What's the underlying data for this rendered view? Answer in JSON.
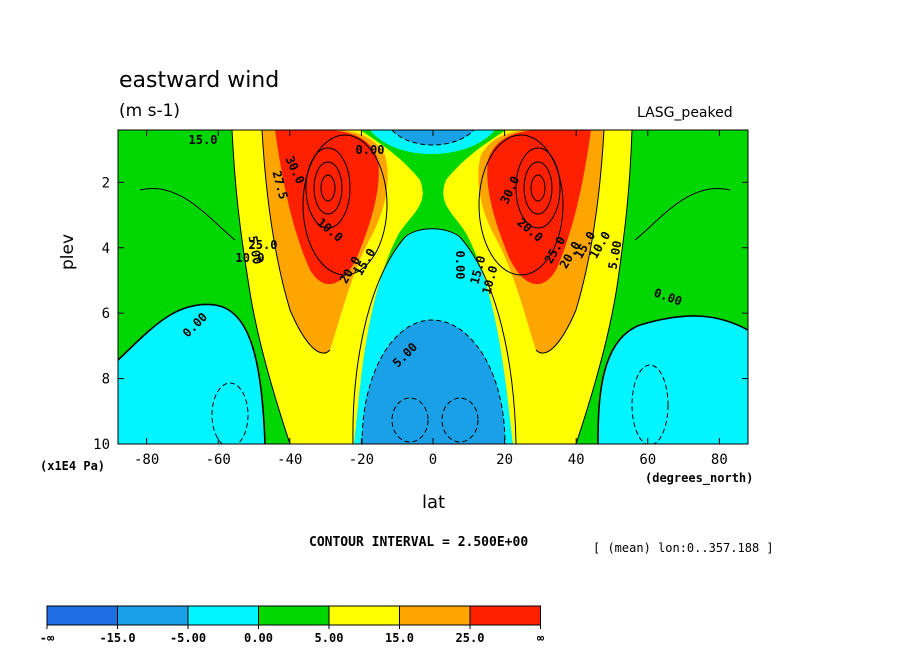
{
  "header": {
    "title": "eastward wind",
    "units": "(m s-1)",
    "model": "LASG_peaked"
  },
  "footer": {
    "contour_interval": "CONTOUR INTERVAL = 2.500E+00",
    "mean_note": "[ (mean) lon:0..357.188 ]"
  },
  "chart_data": {
    "type": "heatmap",
    "title": "eastward wind",
    "units": "(m s-1)",
    "xlabel": "lat",
    "xunit": "(degrees_north)",
    "ylabel": "plev",
    "yunit": "(x1E4 Pa)",
    "xlim": [
      -88,
      88
    ],
    "ylim": [
      10,
      0.4
    ],
    "x_ticks": [
      -80,
      -60,
      -40,
      -20,
      0,
      20,
      40,
      60,
      80
    ],
    "x_tick_labels": [
      "-80",
      "-60",
      "-40",
      "-20",
      "0",
      "20",
      "40",
      "60",
      "80"
    ],
    "y_ticks": [
      2,
      4,
      6,
      8,
      10
    ],
    "y_tick_labels": [
      "2",
      "4",
      "6",
      "8",
      "10"
    ],
    "contour_interval": 2.5,
    "color_levels": [
      -15,
      -5,
      0,
      5,
      15,
      25
    ],
    "colorbar": {
      "labels": [
        "-∞",
        "-15.0",
        "-5.00",
        "0.00",
        "5.00",
        "15.0",
        "25.0",
        "∞"
      ],
      "colors": [
        "#1e6ee6",
        "#1aa0e6",
        "#00f5ff",
        "#00d700",
        "#ffff00",
        "#ffa500",
        "#ff2000"
      ]
    },
    "jets": [
      {
        "lat": -30,
        "plev": 2.0,
        "max_value": 45
      },
      {
        "lat": 30,
        "plev": 2.0,
        "max_value": 45
      }
    ],
    "contour_labels": [
      "15.0",
      "0.00",
      "30.0",
      "27.5",
      "10.0",
      "5.00",
      "10.0",
      "25.0",
      "20.0",
      "15.0",
      "0.00",
      "5.00",
      "0.00",
      "10.0",
      "15.0",
      "30.0",
      "20.0",
      "25.0",
      "20.0",
      "15.0",
      "10.0",
      "5.00",
      "0.00"
    ]
  }
}
